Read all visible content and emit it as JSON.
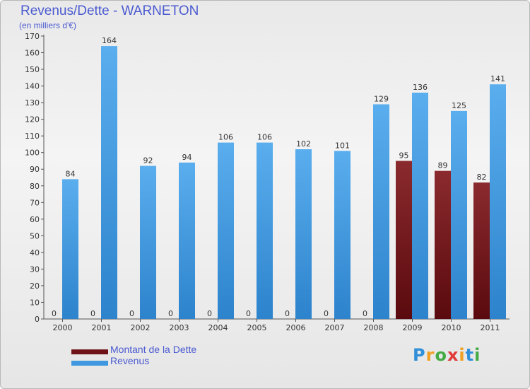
{
  "title": "Revenus/Dette - WARNETON",
  "subtitle": "(en milliers d'€)",
  "legend": {
    "debt_label": "Montant de la Dette",
    "revenue_label": "Revenus"
  },
  "logo_text": "Proxiti",
  "colors": {
    "debt": "#6e1418",
    "revenue": "#3f98e0",
    "text_accent": "#4b5bd0"
  },
  "chart_data": {
    "type": "bar",
    "title": "Revenus/Dette - WARNETON",
    "subtitle": "(en milliers d'€)",
    "categories": [
      "2000",
      "2001",
      "2002",
      "2003",
      "2004",
      "2005",
      "2006",
      "2007",
      "2008",
      "2009",
      "2010",
      "2011"
    ],
    "series": [
      {
        "name": "Montant de la Dette",
        "values": [
          0,
          0,
          0,
          0,
          0,
          0,
          0,
          0,
          0,
          95,
          89,
          82
        ]
      },
      {
        "name": "Revenus",
        "values": [
          84,
          164,
          92,
          94,
          106,
          106,
          102,
          101,
          129,
          136,
          125,
          141
        ]
      }
    ],
    "ylim": [
      0,
      170
    ],
    "yticks": [
      0,
      10,
      20,
      30,
      40,
      50,
      60,
      70,
      80,
      90,
      100,
      110,
      120,
      130,
      140,
      150,
      160,
      170
    ],
    "grid": false,
    "legend_position": "bottom-left"
  }
}
